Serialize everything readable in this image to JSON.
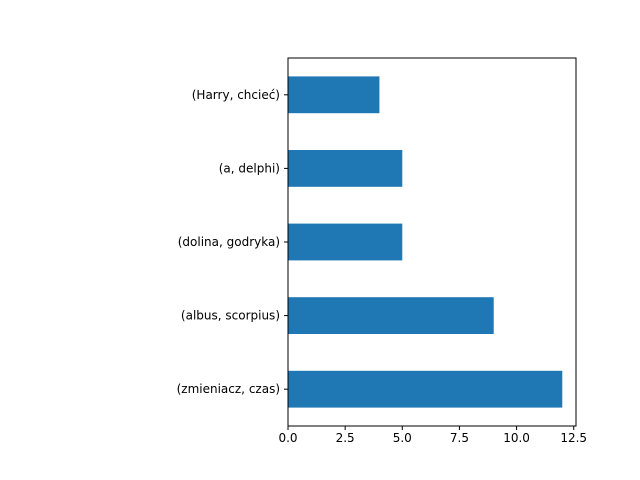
{
  "chart_data": {
    "type": "bar",
    "orientation": "horizontal",
    "categories": [
      "(Harry, chcieć)",
      "(a, delphi)",
      "(dolina, godryka)",
      "(albus, scorpius)",
      "(zmieniacz, czas)"
    ],
    "values": [
      4,
      5,
      5,
      9,
      12
    ],
    "xlim": [
      0,
      12.6
    ],
    "xticks": [
      "0.0",
      "2.5",
      "5.0",
      "7.5",
      "10.0",
      "12.5"
    ],
    "title": "",
    "xlabel": "",
    "ylabel": "",
    "grid": false,
    "bar_color": "#1f77b4"
  }
}
